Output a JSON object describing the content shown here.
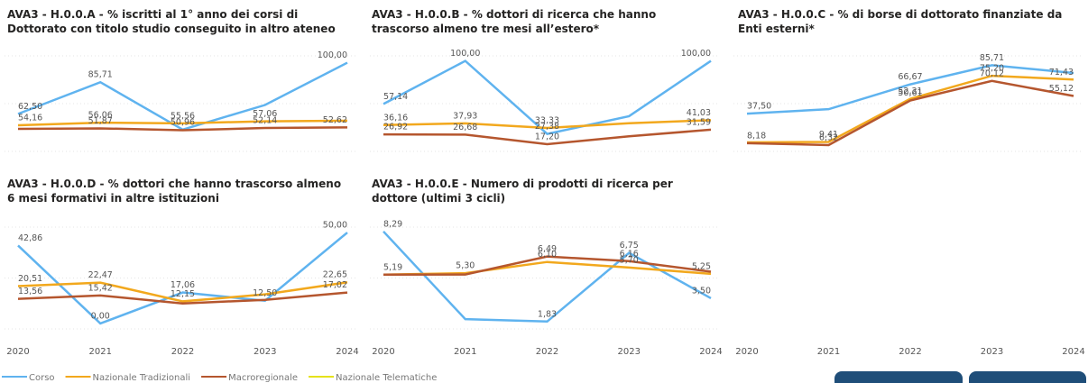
{
  "legend": [
    {
      "name": "Corso",
      "color": "#5fb3ef"
    },
    {
      "name": "Nazionale Tradizionali",
      "color": "#f2a81d"
    },
    {
      "name": "Macroregionale",
      "color": "#b5562e"
    },
    {
      "name": "Nazionale Telematiche",
      "color": "#e6e21a"
    }
  ],
  "chart_data": [
    {
      "type": "line",
      "title": "AVA3 - H.0.0.A - % iscritti al 1° anno dei corsi di Dottorato con titolo studio conseguito in altro ateneo",
      "ylim": [
        35,
        105
      ],
      "series": [
        {
          "name": "Corso",
          "values": [
            62.5,
            85.71,
            50.96,
            69,
            100
          ],
          "value_labels": [
            "62,50",
            "85,71",
            "50,96",
            null,
            "100,00"
          ]
        },
        {
          "name": "Nazionale Tradizionali",
          "values": [
            54.16,
            56.06,
            55.56,
            57.06,
            57.5
          ],
          "value_labels": [
            "54,16",
            "56,06",
            "55,56",
            "57,06",
            null
          ]
        },
        {
          "name": "Macroregionale",
          "values": [
            51.5,
            51.87,
            50.5,
            52.14,
            52.62
          ],
          "value_labels": [
            null,
            "51,87",
            null,
            "52,14",
            "52,62"
          ]
        }
      ]
    },
    {
      "type": "line",
      "title": "AVA3 - H.0.0.B - % dottori di ricerca che hanno trascorso almeno tre mesi all’estero*",
      "ylim": [
        10,
        105
      ],
      "series": [
        {
          "name": "Corso",
          "values": [
            57.14,
            100,
            27.38,
            45,
            100
          ],
          "value_labels": [
            "57,14",
            "100,00",
            "27,38",
            null,
            "100,00"
          ]
        },
        {
          "name": "Nazionale Tradizionali",
          "values": [
            36.16,
            37.93,
            33.33,
            38,
            41.03
          ],
          "value_labels": [
            "36,16",
            "37,93",
            "33,33",
            null,
            "41,03"
          ]
        },
        {
          "name": "Macroregionale",
          "values": [
            26.92,
            26.68,
            17.2,
            25,
            31.59
          ],
          "value_labels": [
            "26,92",
            "26,68",
            "17,20",
            null,
            "31,59"
          ]
        }
      ]
    },
    {
      "type": "line",
      "title": "AVA3 - H.0.0.C - % di borse di dottorato finanziate da Enti esterni*",
      "categories": [
        "2020",
        "2021",
        "2022",
        "2023",
        "2024"
      ],
      "ylim": [
        0,
        95
      ],
      "series": [
        {
          "name": "Corso",
          "values": [
            37.5,
            42,
            66.67,
            85.71,
            78
          ],
          "value_labels": [
            "37,50",
            null,
            "66,67",
            "85,71",
            null
          ]
        },
        {
          "name": "Nazionale Tradizionali",
          "values": [
            9,
            9.41,
            52.31,
            75.2,
            71.43
          ],
          "value_labels": [
            null,
            "9,41",
            "52,31",
            "75,20",
            "71,43"
          ]
        },
        {
          "name": "Macroregionale",
          "values": [
            8.18,
            6.32,
            50.61,
            70.12,
            55.12
          ],
          "value_labels": [
            "8,18",
            "6,32",
            "50,61",
            "70,12",
            "55,12"
          ]
        }
      ]
    },
    {
      "type": "line",
      "title": "AVA3 - H.0.0.D - % dottori che hanno trascorso almeno 6 mesi formativi in altre istituzioni",
      "categories": [
        "2020",
        "2021",
        "2022",
        "2023",
        "2024"
      ],
      "ylim": [
        -3,
        53
      ],
      "series": [
        {
          "name": "Corso",
          "values": [
            42.86,
            0,
            17.06,
            12.5,
            50
          ],
          "value_labels": [
            "42,86",
            "0,00",
            "17,06",
            "12,50",
            "50,00"
          ]
        },
        {
          "name": "Nazionale Tradizionali",
          "values": [
            20.51,
            22.47,
            12.15,
            16,
            22.65
          ],
          "value_labels": [
            "20,51",
            "22,47",
            "12,15",
            null,
            "22,65"
          ]
        },
        {
          "name": "Macroregionale",
          "values": [
            13.56,
            15.42,
            11,
            13,
            17.02
          ],
          "value_labels": [
            "13,56",
            "15,42",
            null,
            null,
            "17,02"
          ]
        }
      ]
    },
    {
      "type": "line",
      "title": "AVA3 - H.0.0.E - Numero di prodotti di ricerca per dottore (ultimi 3 cicli)",
      "categories": [
        "2020",
        "2021",
        "2022",
        "2023",
        "2024"
      ],
      "ylim": [
        1.3,
        8.6
      ],
      "series": [
        {
          "name": "Corso",
          "values": [
            8.29,
            2,
            1.83,
            6.75,
            3.5
          ],
          "value_labels": [
            "8,29",
            null,
            "1,83",
            "6,75",
            "3,50"
          ]
        },
        {
          "name": "Nazionale Tradizionali",
          "values": [
            5.19,
            5.3,
            6.1,
            5.7,
            5.25
          ],
          "value_labels": [
            "5,19",
            "5,30",
            "6,10",
            "5,70",
            "5,25"
          ]
        },
        {
          "name": "Macroregionale",
          "values": [
            5.19,
            5.2,
            6.49,
            6.16,
            5.4
          ],
          "value_labels": [
            null,
            null,
            "6,49",
            "6,16",
            null
          ]
        }
      ]
    }
  ]
}
